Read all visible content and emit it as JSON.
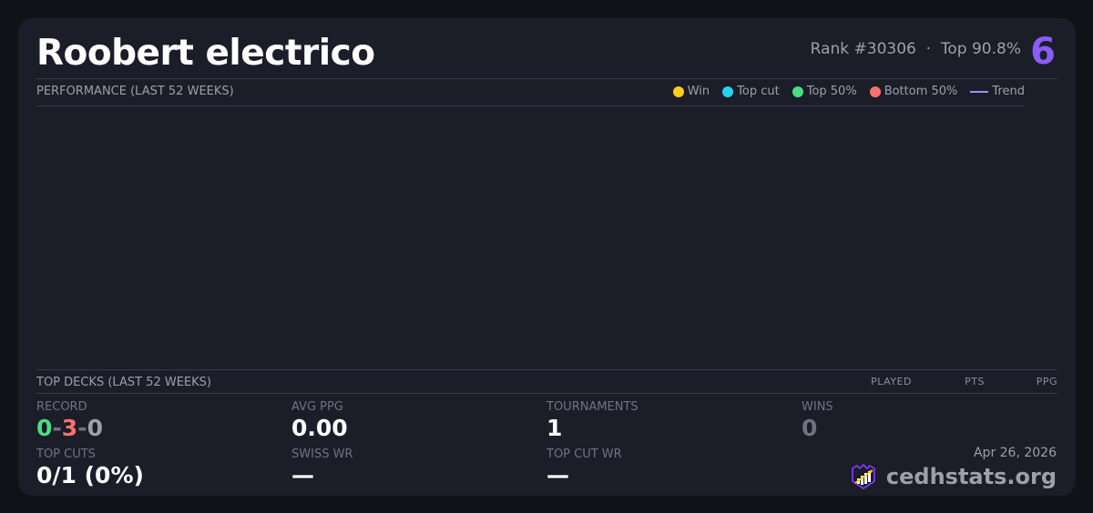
{
  "player": {
    "name": "Roobert electrico",
    "rank": "Rank #30306",
    "separator": "·",
    "top": "Top 90.8%",
    "badge": "6"
  },
  "performance": {
    "title": "PERFORMANCE (LAST 52 WEEKS)",
    "legend": [
      {
        "label": "Win",
        "color": "#facc15"
      },
      {
        "label": "Top cut",
        "color": "#22d3ee"
      },
      {
        "label": "Top 50%",
        "color": "#4ade80"
      },
      {
        "label": "Bottom 50%",
        "color": "#f87171"
      },
      {
        "label": "Trend",
        "color": "#a78bfa"
      }
    ]
  },
  "top_decks": {
    "title": "TOP DECKS (LAST 52 WEEKS)",
    "columns": [
      "PLAYED",
      "PTS",
      "PPG"
    ]
  },
  "stats": {
    "record": {
      "label": "RECORD",
      "wins": "0",
      "losses": "3",
      "draws": "0",
      "dash": "-"
    },
    "avg_ppg": {
      "label": "AVG PPG",
      "value": "0.00"
    },
    "tournaments": {
      "label": "TOURNAMENTS",
      "value": "1"
    },
    "wins": {
      "label": "WINS",
      "value": "0"
    },
    "top_cuts": {
      "label": "TOP CUTS",
      "value": "0/1 (0%)"
    },
    "swiss_wr": {
      "label": "SWISS WR",
      "value": "—"
    },
    "top_cut_wr": {
      "label": "TOP CUT WR",
      "value": "—"
    }
  },
  "footer": {
    "date": "Apr 26, 2026",
    "brand": "cedhstats.org"
  }
}
